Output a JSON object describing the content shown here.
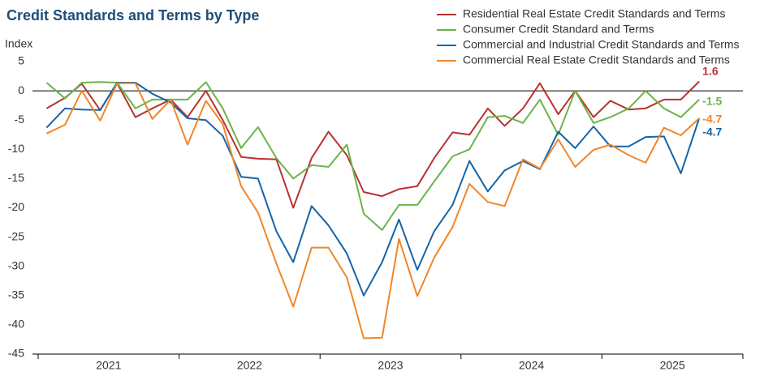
{
  "chart_data": {
    "type": "line",
    "title": "Credit Standards and Terms by Type",
    "y_label": "Index",
    "x": [
      2021.06,
      2021.19,
      2021.31,
      2021.44,
      2021.56,
      2021.69,
      2021.81,
      2021.94,
      2022.06,
      2022.19,
      2022.31,
      2022.44,
      2022.56,
      2022.69,
      2022.81,
      2022.94,
      2023.06,
      2023.19,
      2023.31,
      2023.44,
      2023.56,
      2023.69,
      2023.81,
      2023.94,
      2024.06,
      2024.19,
      2024.31,
      2024.44,
      2024.56,
      2024.69,
      2024.81,
      2024.94,
      2025.06,
      2025.19,
      2025.31,
      2025.44,
      2025.56,
      2025.69
    ],
    "series": [
      {
        "name": "Residential Real Estate Credit Standards and Terms",
        "color": "#b83232",
        "values": [
          -3,
          -1.2,
          1.2,
          -3.3,
          1.3,
          -4.5,
          -3,
          -1.5,
          -4.5,
          0,
          -5,
          -11.3,
          -11.6,
          -11.7,
          -20,
          -11.5,
          -7,
          -11,
          -17.3,
          -18,
          -16.8,
          -16.3,
          -11.5,
          -7.1,
          -7.5,
          -3,
          -6,
          -3,
          1.3,
          -4,
          0,
          -4.5,
          -1.7,
          -3.2,
          -3,
          -1.5,
          -1.5,
          1.6
        ]
      },
      {
        "name": "Consumer Credit Standard and Terms",
        "color": "#6cb44a",
        "values": [
          1.4,
          -1.3,
          1.4,
          1.5,
          1.4,
          -3,
          -1.5,
          -1.5,
          -1.5,
          1.5,
          -3,
          -9.8,
          -6.2,
          -11.5,
          -15,
          -12.7,
          -13,
          -9.2,
          -21,
          -23.8,
          -19.5,
          -19.5,
          -15.5,
          -11.2,
          -10,
          -4.5,
          -4.3,
          -5.5,
          -1.5,
          -7.5,
          0,
          -5.5,
          -4.5,
          -3,
          0,
          -3,
          -4.5,
          -1.5
        ]
      },
      {
        "name": "Commercial and Industrial Credit Standards and Terms",
        "color": "#1565a8",
        "values": [
          -6.3,
          -3,
          -3.2,
          -3.3,
          1.4,
          1.4,
          -0.5,
          -2,
          -4.7,
          -5,
          -7.7,
          -14.7,
          -15,
          -24,
          -29.3,
          -19.7,
          -23,
          -27.8,
          -35,
          -29.3,
          -22,
          -30.6,
          -24,
          -19.5,
          -12,
          -17.2,
          -13.6,
          -12,
          -13.4,
          -7,
          -9.8,
          -6.1,
          -9.5,
          -9.5,
          -7.9,
          -7.8,
          -14.1,
          -4.7
        ]
      },
      {
        "name": "Commercial Real Estate Credit Standards and Terms",
        "color": "#f0862a",
        "values": [
          -7.3,
          -5.8,
          0,
          -5.1,
          1.3,
          1.3,
          -4.8,
          -1.5,
          -9.2,
          -1.7,
          -5.7,
          -16.3,
          -20.8,
          -29.5,
          -36.9,
          -26.8,
          -26.8,
          -31.9,
          -42.3,
          -42.2,
          -25.3,
          -35.1,
          -28.5,
          -23.3,
          -15.9,
          -19,
          -19.7,
          -11.7,
          -13.3,
          -8.3,
          -13,
          -10.1,
          -9.2,
          -11,
          -12.3,
          -6.3,
          -7.6,
          -4.7
        ]
      }
    ],
    "xlim": [
      2021,
      2026
    ],
    "xticks": [
      {
        "value": 2021.5,
        "label": "2021"
      },
      {
        "value": 2022.5,
        "label": "2022"
      },
      {
        "value": 2023.5,
        "label": "2023"
      },
      {
        "value": 2024.5,
        "label": "2024"
      },
      {
        "value": 2025.5,
        "label": "2025"
      }
    ],
    "ylim": [
      -45,
      5
    ],
    "yticks": [
      -45,
      -40,
      -35,
      -30,
      -25,
      -20,
      -15,
      -10,
      -5,
      0,
      5
    ],
    "legend": "top-right"
  }
}
